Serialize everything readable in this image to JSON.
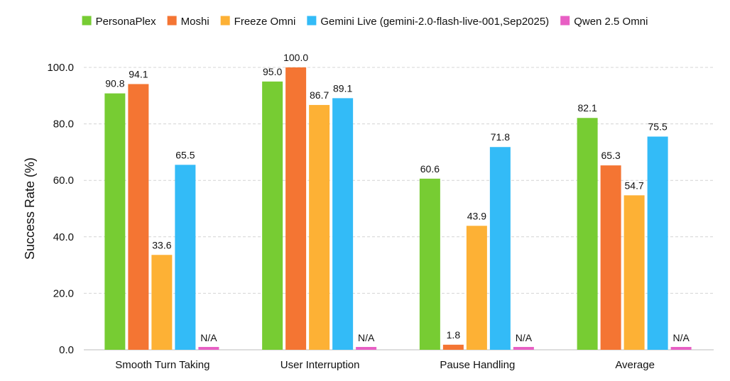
{
  "chart_data": {
    "type": "bar",
    "title": "",
    "xlabel": "",
    "ylabel": "Success Rate (%)",
    "ylim": [
      0,
      100
    ],
    "yticks": [
      0,
      20,
      40,
      60,
      80,
      100
    ],
    "ytick_labels": [
      "0.0",
      "20.0",
      "40.0",
      "60.0",
      "80.0",
      "100.0"
    ],
    "grid": true,
    "legend_position": "top",
    "categories": [
      "Smooth Turn Taking",
      "User Interruption",
      "Pause Handling",
      "Average"
    ],
    "series": [
      {
        "name": "PersonaPlex",
        "color": "#77cc33",
        "values": [
          90.8,
          95.0,
          60.6,
          82.1
        ],
        "labels": [
          "90.8",
          "95.0",
          "60.6",
          "82.1"
        ]
      },
      {
        "name": "Moshi",
        "color": "#f47533",
        "values": [
          94.1,
          100.0,
          1.8,
          65.3
        ],
        "labels": [
          "94.1",
          "100.0",
          "1.8",
          "65.3"
        ]
      },
      {
        "name": "Freeze Omni",
        "color": "#fdb135",
        "values": [
          33.6,
          86.7,
          43.9,
          54.7
        ],
        "labels": [
          "33.6",
          "86.7",
          "43.9",
          "54.7"
        ]
      },
      {
        "name": "Gemini Live (gemini-2.0-flash-live-001,Sep2025)",
        "color": "#33bbf7",
        "values": [
          65.5,
          89.1,
          71.8,
          75.5
        ],
        "labels": [
          "65.5",
          "89.1",
          "71.8",
          "75.5"
        ]
      },
      {
        "name": "Qwen 2.5 Omni",
        "color": "#e85fc4",
        "values": [
          null,
          null,
          null,
          null
        ],
        "labels": [
          "N/A",
          "N/A",
          "N/A",
          "N/A"
        ]
      }
    ]
  }
}
